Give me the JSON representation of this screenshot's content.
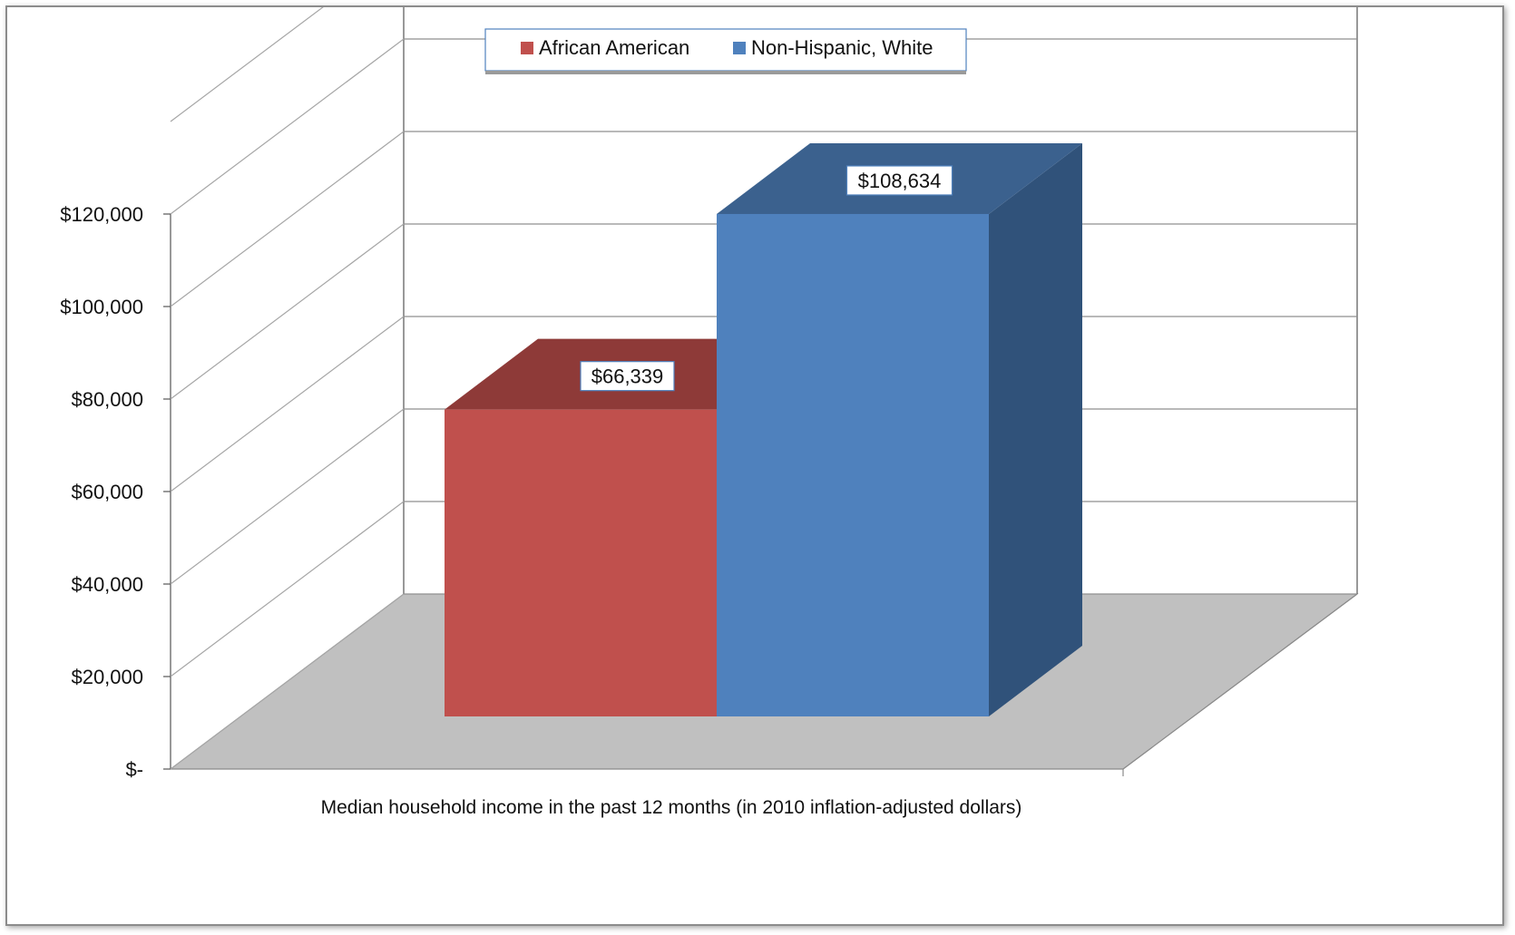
{
  "chart_data": {
    "type": "bar",
    "style": "3d-clustered-column",
    "title": "",
    "categories": [
      "Median household income in the past 12 months (in 2010 inflation-adjusted dollars)"
    ],
    "xlabel": "Median household income in the past 12 months (in 2010 inflation-adjusted dollars)",
    "ylabel": "",
    "ylim": [
      0,
      120000
    ],
    "yticks": [
      {
        "value": 0,
        "label": "$-"
      },
      {
        "value": 20000,
        "label": "$20,000"
      },
      {
        "value": 40000,
        "label": "$40,000"
      },
      {
        "value": 60000,
        "label": "$60,000"
      },
      {
        "value": 80000,
        "label": "$80,000"
      },
      {
        "value": 100000,
        "label": "$100,000"
      },
      {
        "value": 120000,
        "label": "$120,000"
      }
    ],
    "series": [
      {
        "name": "African American",
        "values": [
          66339
        ],
        "label": "$66,339",
        "color": "#c0504d",
        "top_color": "#8e3a38"
      },
      {
        "name": "Non-Hispanic, White",
        "values": [
          108634
        ],
        "label": "$108,634",
        "color": "#4f81bd",
        "top_color": "#3b618e",
        "side_color": "#30527a"
      }
    ],
    "grid": true,
    "legend_position": "top",
    "floor_color": "#c0c0c0"
  }
}
